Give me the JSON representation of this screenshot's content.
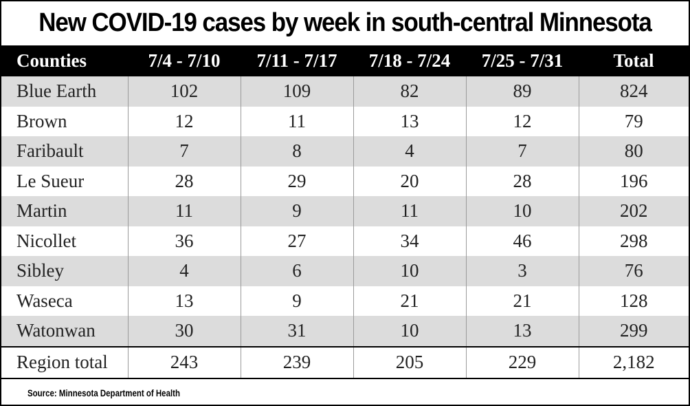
{
  "chart_data": {
    "type": "table",
    "title": "New COVID-19 cases by week in south-central Minnesota",
    "columns": [
      "Counties",
      "7/4 - 7/10",
      "7/11 - 7/17",
      "7/18 - 7/24",
      "7/25 - 7/31",
      "Total"
    ],
    "rows": [
      [
        "Blue Earth",
        "102",
        "109",
        "82",
        "89",
        "824"
      ],
      [
        "Brown",
        "12",
        "11",
        "13",
        "12",
        "79"
      ],
      [
        "Faribault",
        "7",
        "8",
        "4",
        "7",
        "80"
      ],
      [
        "Le Sueur",
        "28",
        "29",
        "20",
        "28",
        "196"
      ],
      [
        "Martin",
        "11",
        "9",
        "11",
        "10",
        "202"
      ],
      [
        "Nicollet",
        "36",
        "27",
        "34",
        "46",
        "298"
      ],
      [
        "Sibley",
        "4",
        "6",
        "10",
        "3",
        "76"
      ],
      [
        "Waseca",
        "13",
        "9",
        "21",
        "21",
        "128"
      ],
      [
        "Watonwan",
        "30",
        "31",
        "10",
        "13",
        "299"
      ]
    ],
    "total_row": [
      "Region total",
      "243",
      "239",
      "205",
      "229",
      "2,182"
    ],
    "source": "Source: Minnesota Department of Health"
  }
}
